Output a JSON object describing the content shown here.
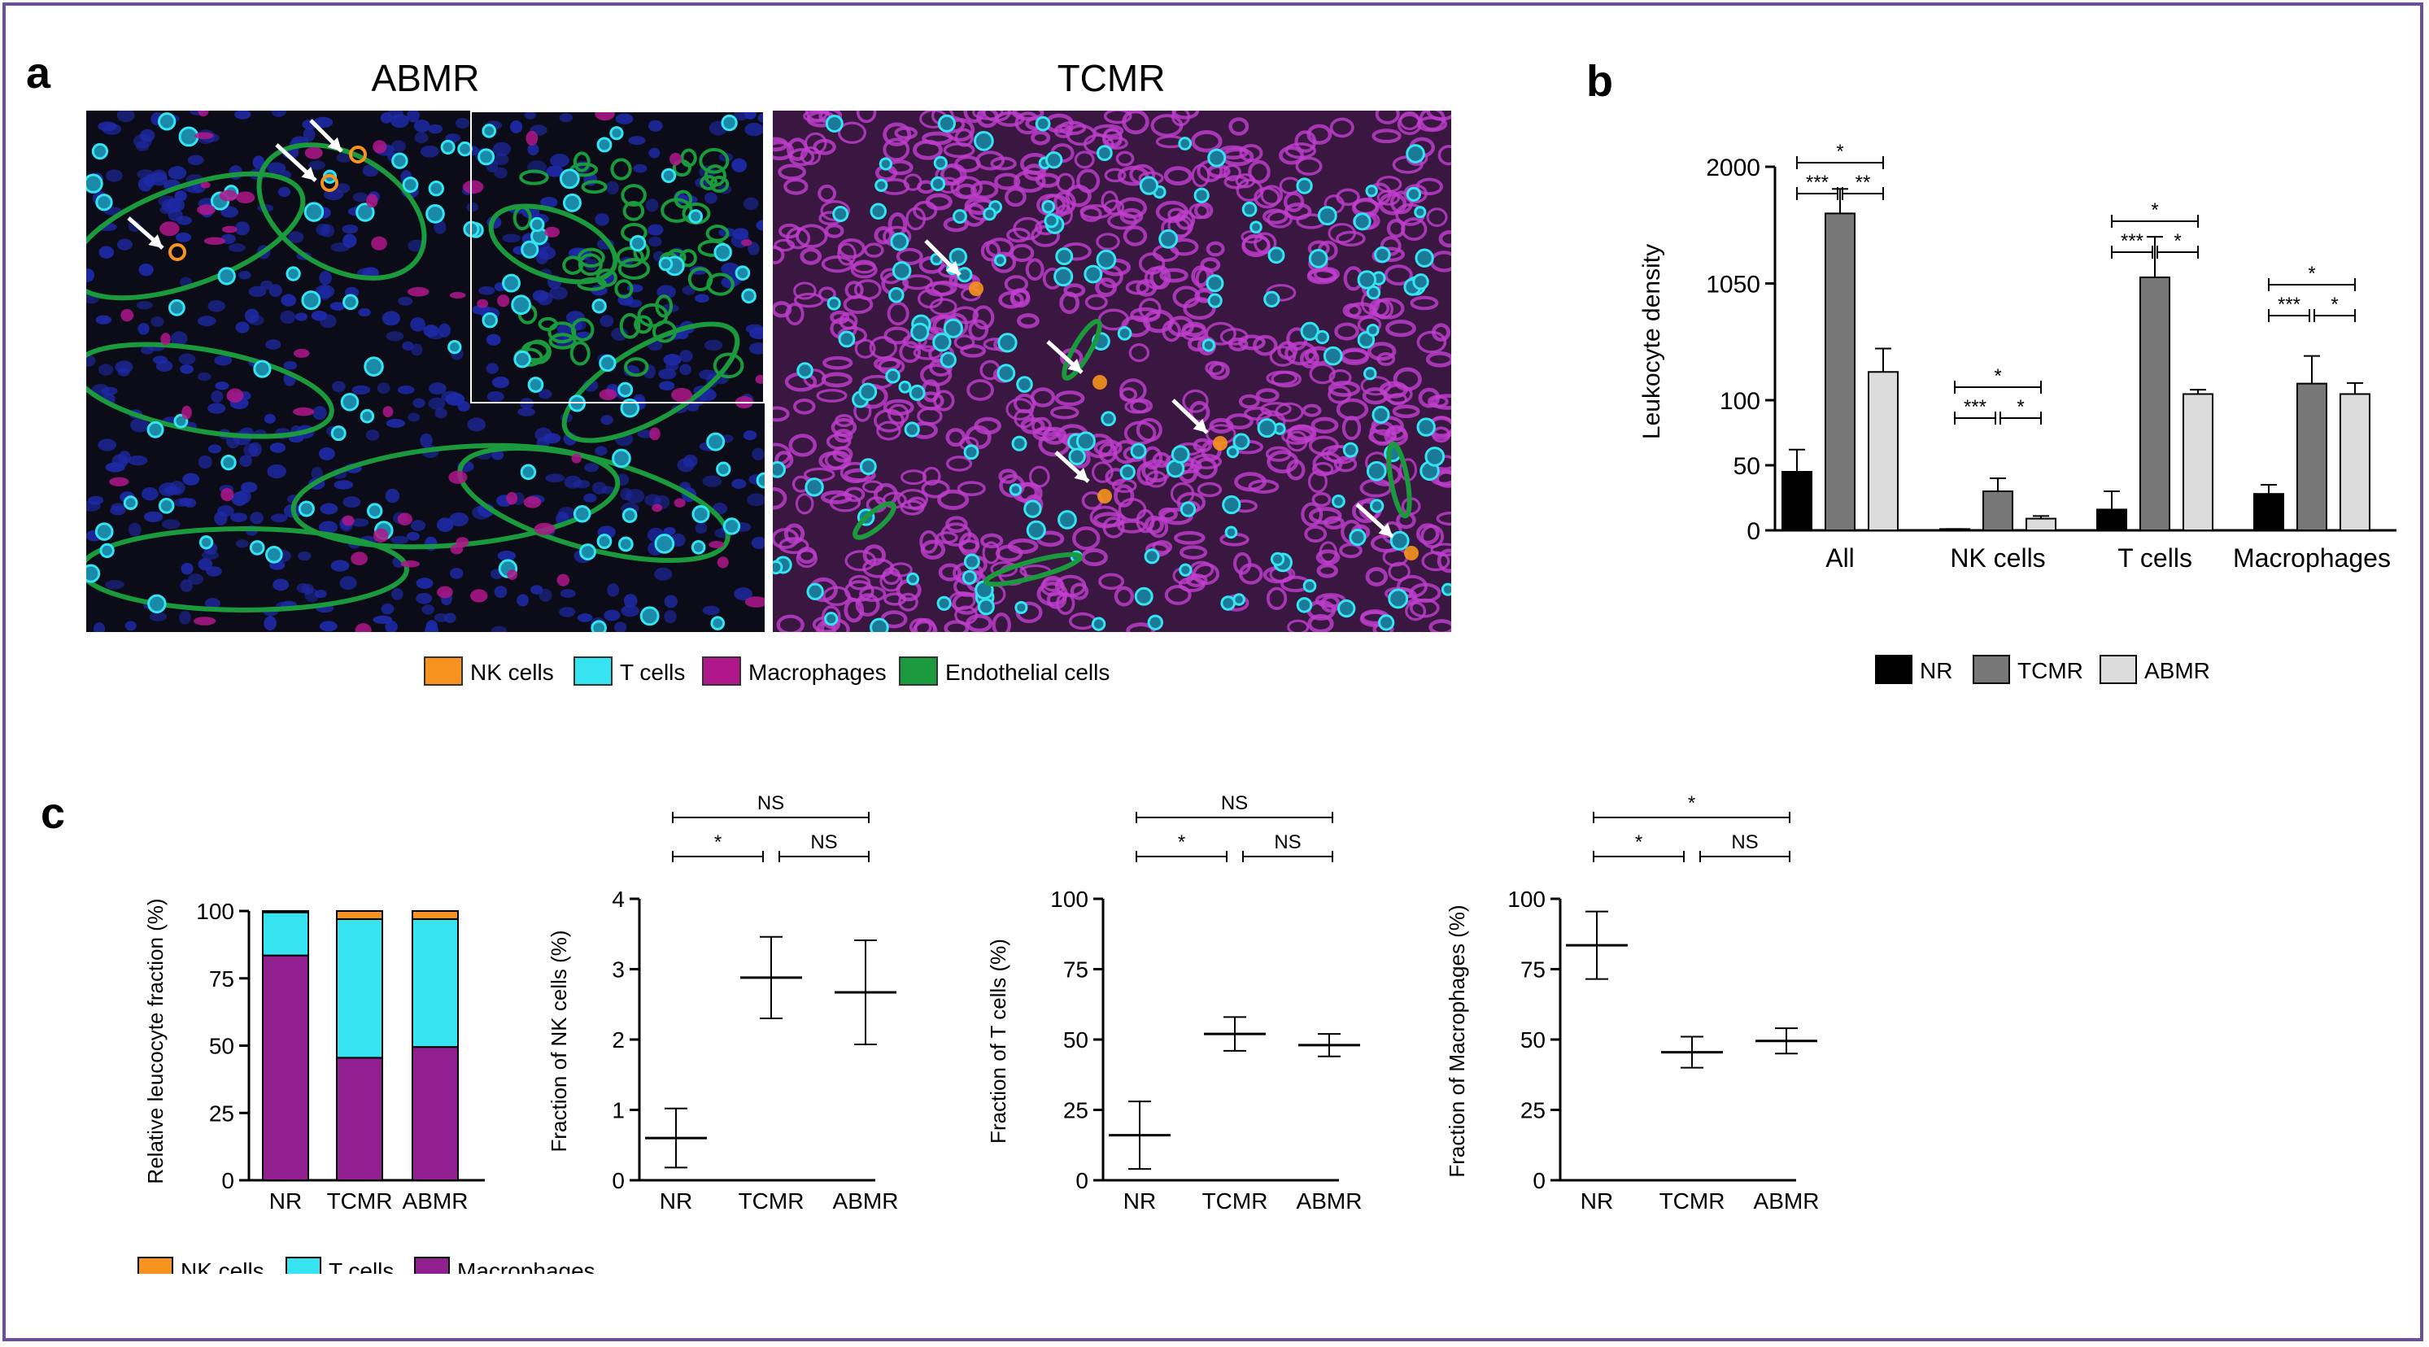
{
  "panels": {
    "a": {
      "label": "a",
      "abmr_title": "ABMR",
      "tcmr_title": "TCMR",
      "legend": [
        {
          "name": "NK cells",
          "color": "#f7931e"
        },
        {
          "name": "T cells",
          "color": "#35e4f0"
        },
        {
          "name": "Macrophages",
          "color": "#b0178a"
        },
        {
          "name": "Endothelial cells",
          "color": "#1a9a3c"
        }
      ]
    },
    "b": {
      "label": "b"
    },
    "c": {
      "label": "c"
    }
  },
  "colors": {
    "NR": "#000000",
    "TCMR": "#777777",
    "ABMR": "#dcdcdc",
    "nk": "#f7931e",
    "t": "#35e4f0",
    "mac": "#90208f",
    "endo": "#1a9a3c",
    "micro_bg": "#0c0c18",
    "nuclei": "#1e2aa8",
    "tcmr_tissue": "#8e3f9e"
  },
  "chart_data": [
    {
      "id": "b",
      "type": "bar",
      "ylabel": "Leukocyte density",
      "yticks": [
        "0",
        "50",
        "100",
        "1050",
        "2000"
      ],
      "axis_note": "broken y-axis: 0–100 linear lower segment, 100–2000 upper segment",
      "categories": [
        "All",
        "NK cells",
        "T cells",
        "Macrophages"
      ],
      "series": [
        {
          "name": "NR",
          "values": [
            45,
            1,
            16,
            28
          ],
          "err": [
            62,
            1,
            30,
            35
          ]
        },
        {
          "name": "TCMR",
          "values": [
            1620,
            30,
            1100,
            235
          ],
          "err": [
            1820,
            40,
            1430,
            460
          ]
        },
        {
          "name": "ABMR",
          "values": [
            330,
            9,
            150,
            150
          ],
          "err": [
            520,
            11,
            185,
            240
          ]
        }
      ],
      "significance": [
        {
          "group": "All",
          "pairs": [
            [
              "NR",
              "ABMR",
              "*"
            ],
            [
              "NR",
              "TCMR",
              "***"
            ],
            [
              "TCMR",
              "ABMR",
              "**"
            ]
          ]
        },
        {
          "group": "NK cells",
          "pairs": [
            [
              "NR",
              "ABMR",
              "*"
            ],
            [
              "NR",
              "TCMR",
              "***"
            ],
            [
              "TCMR",
              "ABMR",
              "*"
            ]
          ]
        },
        {
          "group": "T cells",
          "pairs": [
            [
              "NR",
              "ABMR",
              "*"
            ],
            [
              "NR",
              "TCMR",
              "***"
            ],
            [
              "TCMR",
              "ABMR",
              "*"
            ]
          ]
        },
        {
          "group": "Macrophages",
          "pairs": [
            [
              "NR",
              "ABMR",
              "*"
            ],
            [
              "NR",
              "TCMR",
              "***"
            ],
            [
              "TCMR",
              "ABMR",
              "*"
            ]
          ]
        }
      ],
      "legend": [
        "NR",
        "TCMR",
        "ABMR"
      ],
      "legend_position": "bottom"
    },
    {
      "id": "c1",
      "type": "bar",
      "stacked": true,
      "ylabel": "Relative leucocyte fraction (%)",
      "categories": [
        "NR",
        "TCMR",
        "ABMR"
      ],
      "ylim": [
        0,
        100
      ],
      "yticks": [
        "0",
        "25",
        "50",
        "75",
        "100"
      ],
      "series": [
        {
          "name": "Macrophages",
          "values": [
            83.5,
            45.5,
            49.5
          ]
        },
        {
          "name": "T cells",
          "values": [
            16,
            51.5,
            47.5
          ]
        },
        {
          "name": "NK cells",
          "values": [
            0.5,
            3,
            3
          ]
        }
      ],
      "legend": [
        "NK cells",
        "T cells",
        "Macrophages"
      ],
      "legend_position": "bottom"
    },
    {
      "id": "c2",
      "type": "scatter",
      "ylabel": "Fraction of NK cells (%)",
      "categories": [
        "NR",
        "TCMR",
        "ABMR"
      ],
      "ylim": [
        0,
        4
      ],
      "yticks": [
        "0",
        "1",
        "2",
        "3",
        "4"
      ],
      "mean": [
        0.6,
        2.88,
        2.67
      ],
      "low": [
        0.18,
        2.3,
        1.93
      ],
      "high": [
        1.02,
        3.46,
        3.41
      ],
      "significance": [
        [
          "NR",
          "TCMR",
          "*"
        ],
        [
          "TCMR",
          "ABMR",
          "NS"
        ],
        [
          "NR",
          "ABMR",
          "NS"
        ]
      ]
    },
    {
      "id": "c3",
      "type": "scatter",
      "ylabel": "Fraction of T cells (%)",
      "categories": [
        "NR",
        "TCMR",
        "ABMR"
      ],
      "ylim": [
        0,
        100
      ],
      "yticks": [
        "0",
        "25",
        "50",
        "75",
        "100"
      ],
      "mean": [
        16,
        52,
        48
      ],
      "low": [
        4,
        46,
        44
      ],
      "high": [
        28,
        58,
        52
      ],
      "significance": [
        [
          "NR",
          "TCMR",
          "*"
        ],
        [
          "TCMR",
          "ABMR",
          "NS"
        ],
        [
          "NR",
          "ABMR",
          "NS"
        ]
      ]
    },
    {
      "id": "c4",
      "type": "scatter",
      "ylabel": "Fraction of Macrophages (%)",
      "categories": [
        "NR",
        "TCMR",
        "ABMR"
      ],
      "ylim": [
        0,
        100
      ],
      "yticks": [
        "0",
        "25",
        "50",
        "75",
        "100"
      ],
      "mean": [
        83.5,
        45.5,
        49.5
      ],
      "low": [
        71.5,
        40,
        45
      ],
      "high": [
        95.5,
        51,
        54
      ],
      "significance": [
        [
          "NR",
          "TCMR",
          "*"
        ],
        [
          "TCMR",
          "ABMR",
          "NS"
        ],
        [
          "NR",
          "ABMR",
          "*"
        ]
      ]
    }
  ]
}
